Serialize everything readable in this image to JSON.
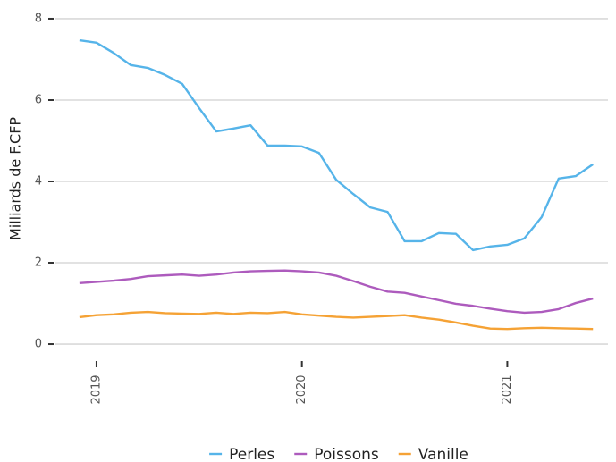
{
  "chart_data": {
    "type": "line",
    "y_label": "Milliards de F.CFP",
    "x": [
      2018.917,
      2019.0,
      2019.083,
      2019.167,
      2019.25,
      2019.333,
      2019.417,
      2019.5,
      2019.583,
      2019.667,
      2019.75,
      2019.833,
      2019.917,
      2020.0,
      2020.083,
      2020.167,
      2020.25,
      2020.333,
      2020.417,
      2020.5,
      2020.583,
      2020.667,
      2020.75,
      2020.833,
      2020.917,
      2021.0,
      2021.083,
      2021.167,
      2021.25,
      2021.333,
      2021.417
    ],
    "series": [
      {
        "name": "Perles",
        "color": "#56b4e9",
        "values": [
          7.47,
          7.41,
          7.16,
          6.86,
          6.79,
          6.62,
          6.4,
          5.8,
          5.23,
          5.3,
          5.38,
          4.88,
          4.88,
          4.86,
          4.7,
          4.04,
          3.69,
          3.36,
          3.25,
          2.53,
          2.53,
          2.73,
          2.71,
          2.31,
          2.4,
          2.44,
          2.6,
          3.12,
          4.07,
          4.13,
          4.42
        ]
      },
      {
        "name": "Poissons",
        "color": "#ad5bbd",
        "values": [
          1.5,
          1.53,
          1.56,
          1.6,
          1.67,
          1.69,
          1.71,
          1.68,
          1.71,
          1.76,
          1.79,
          1.8,
          1.81,
          1.79,
          1.76,
          1.68,
          1.55,
          1.41,
          1.29,
          1.26,
          1.17,
          1.08,
          0.99,
          0.94,
          0.87,
          0.81,
          0.77,
          0.79,
          0.86,
          1.01,
          1.12
        ]
      },
      {
        "name": "Vanille",
        "color": "#f5a235",
        "values": [
          0.66,
          0.71,
          0.73,
          0.77,
          0.79,
          0.76,
          0.75,
          0.74,
          0.77,
          0.74,
          0.77,
          0.76,
          0.79,
          0.73,
          0.7,
          0.67,
          0.65,
          0.67,
          0.69,
          0.71,
          0.65,
          0.6,
          0.53,
          0.45,
          0.38,
          0.37,
          0.39,
          0.4,
          0.39,
          0.38,
          0.37
        ]
      }
    ],
    "xlim": [
      2018.8,
      2021.49
    ],
    "xticks": [
      2019,
      2020,
      2021
    ],
    "ylim": [
      -0.25,
      8.25
    ],
    "yticks": [
      0,
      2,
      4,
      6,
      8
    ],
    "grid": true,
    "legend": "bottom"
  }
}
